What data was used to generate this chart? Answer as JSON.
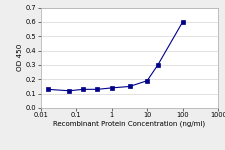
{
  "x": [
    0.016,
    0.064,
    0.16,
    0.4,
    1.0,
    3.2,
    10.0,
    20.0,
    100.0
  ],
  "y": [
    0.13,
    0.12,
    0.13,
    0.13,
    0.14,
    0.15,
    0.19,
    0.3,
    0.6
  ],
  "xlabel": "Recombinant Protein Concentration (ng/ml)",
  "ylabel": "OD 450",
  "xlim": [
    0.01,
    1000
  ],
  "ylim": [
    0,
    0.7
  ],
  "yticks": [
    0,
    0.1,
    0.2,
    0.3,
    0.4,
    0.5,
    0.6,
    0.7
  ],
  "xticks": [
    0.01,
    0.1,
    1,
    10,
    100,
    1000
  ],
  "xtick_labels": [
    "0.01",
    "0.1",
    "1",
    "10",
    "100",
    "1000"
  ],
  "line_color": "#00008B",
  "marker": "s",
  "marker_size": 2.2,
  "marker_color": "#00008B",
  "background_color": "#eeeeee",
  "plot_bg_color": "#ffffff",
  "axis_fontsize": 5.0,
  "tick_fontsize": 4.8,
  "ylabel_fontsize": 5.2,
  "linewidth": 0.8
}
